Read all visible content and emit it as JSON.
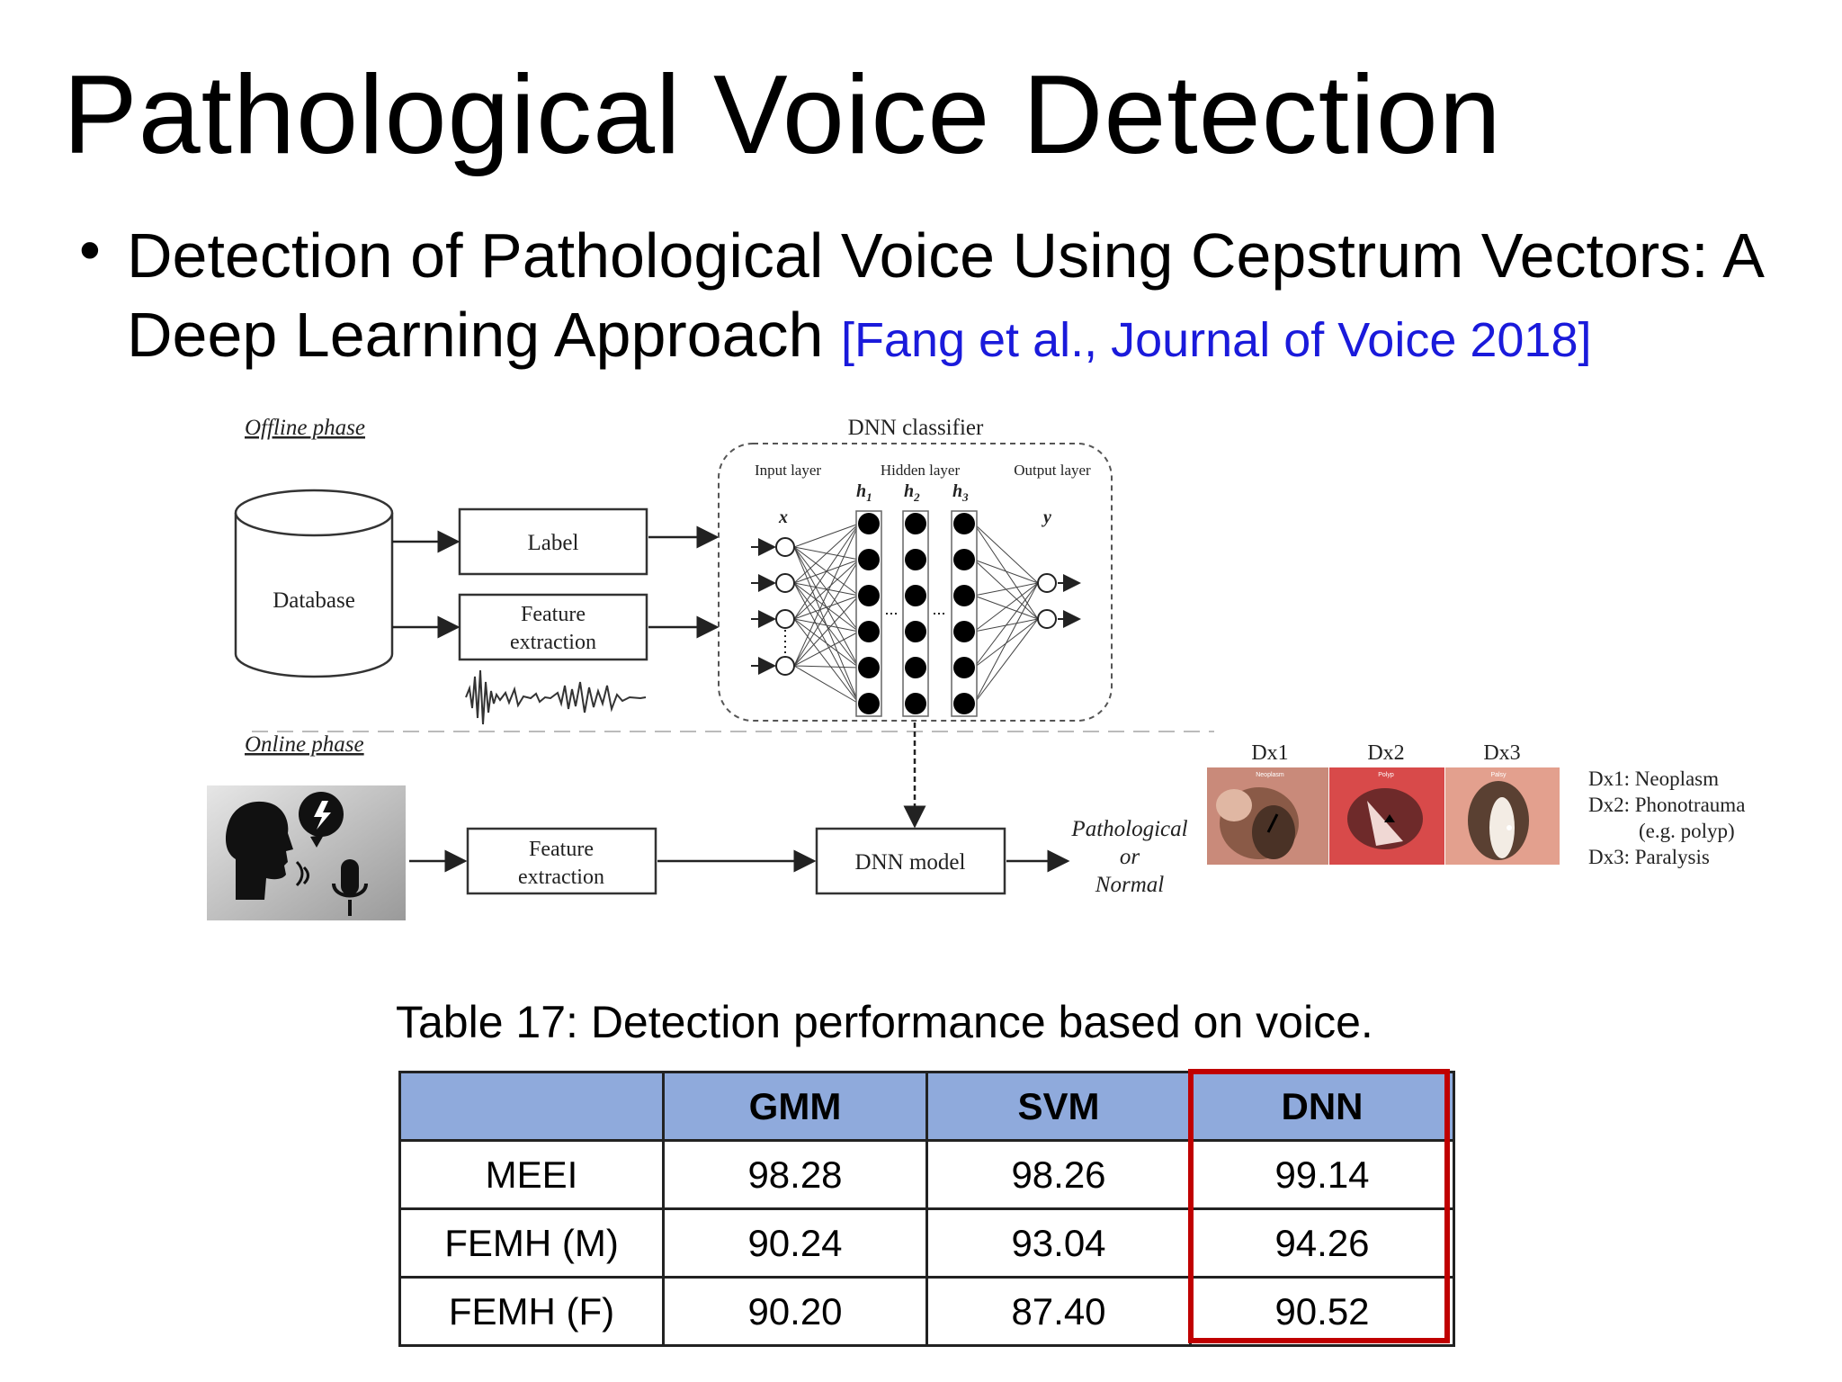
{
  "slide": {
    "title": "Pathological Voice Detection",
    "bullet": "Detection of Pathological Voice Using Cepstrum Vectors: A Deep Learning Approach",
    "citation": "[Fang et al., Journal of Voice 2018]"
  },
  "figure": {
    "offline_label": "Offline phase",
    "online_label": "Online phase",
    "database_label": "Database",
    "label_box": "Label",
    "feature_line1": "Feature",
    "feature_line2": "extraction",
    "dnn_classifier": "DNN classifier",
    "input_layer": "Input layer",
    "hidden_layer": "Hidden layer",
    "output_layer": "Output layer",
    "var_x": "x",
    "var_y": "y",
    "h1": "h",
    "h2": "h",
    "h3": "h",
    "h1_sub": "1",
    "h2_sub": "2",
    "h3_sub": "3",
    "dnn_model": "DNN model",
    "result_line1": "Pathological",
    "result_line2": "or",
    "result_line3": "Normal",
    "dx_labels": [
      "Dx1",
      "Dx2",
      "Dx3"
    ],
    "image_tags": [
      "Neoplasm",
      "Polyp",
      "Palsy"
    ],
    "legend": [
      "Dx1: Neoplasm",
      "Dx2: Phonotrauma",
      "(e.g. polyp)",
      "Dx3: Paralysis"
    ]
  },
  "table": {
    "caption": "Table 17: Detection performance based on voice.",
    "headers": [
      "",
      "GMM",
      "SVM",
      "DNN"
    ],
    "rows": [
      [
        "MEEI",
        "98.28",
        "98.26",
        "99.14"
      ],
      [
        "FEMH (M)",
        "90.24",
        "93.04",
        "94.26"
      ],
      [
        "FEMH (F)",
        "90.20",
        "87.40",
        "90.52"
      ]
    ]
  },
  "colors": {
    "header_fill": "#8faadc",
    "highlight_border": "#c00000",
    "citation": "#1a1adb"
  }
}
